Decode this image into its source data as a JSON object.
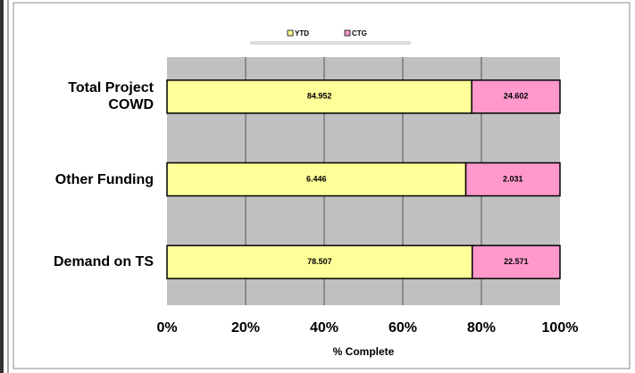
{
  "chart_data": {
    "type": "bar",
    "orientation": "horizontal",
    "stacking": "percent",
    "categories": [
      "Total Project COWD",
      "Other Funding",
      "Demand on TS"
    ],
    "series": [
      {
        "name": "YTD",
        "color": "#ffff99",
        "values": [
          84.952,
          6.446,
          78.507
        ]
      },
      {
        "name": "CTG",
        "color": "#ff99cc",
        "values": [
          24.602,
          2.031,
          22.571
        ]
      }
    ],
    "xlabel": "% Complete",
    "xlim": [
      0,
      100
    ],
    "xticks": [
      {
        "value": 0,
        "label": "0%"
      },
      {
        "value": 20,
        "label": "20%"
      },
      {
        "value": 40,
        "label": "40%"
      },
      {
        "value": 60,
        "label": "60%"
      },
      {
        "value": 80,
        "label": "80%"
      },
      {
        "value": 100,
        "label": "100%"
      }
    ],
    "grid": true,
    "legend": "top"
  }
}
